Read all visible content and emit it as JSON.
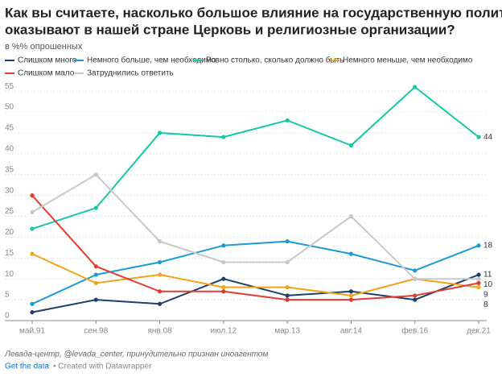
{
  "chart_data": {
    "type": "line",
    "title_lines": [
      "Как вы считаете, насколько большое влияние на государственную политику",
      "оказывают в нашей стране Церковь и религиозные организации?"
    ],
    "subtitle": "в %% опрошенных",
    "categories": [
      "май.91",
      "сен.98",
      "янв.08",
      "июл.12",
      "мар.13",
      "авг.14",
      "фев.16",
      "дек.21"
    ],
    "series": [
      {
        "name": "Слишком много",
        "color": "#1d3f6e",
        "values": [
          2,
          5,
          4,
          10,
          6,
          7,
          5,
          11
        ]
      },
      {
        "name": "Немного больше, чем необходимо",
        "color": "#1a9bd7",
        "values": [
          4,
          11,
          14,
          18,
          19,
          16,
          12,
          18
        ]
      },
      {
        "name": "Ровно столько, сколько должно быть",
        "color": "#15c8a6",
        "values": [
          22,
          27,
          45,
          44,
          48,
          42,
          56,
          44
        ]
      },
      {
        "name": "Немного меньше, чем необходимо",
        "color": "#f5a11c",
        "values": [
          16,
          9,
          11,
          8,
          8,
          6,
          10,
          8
        ]
      },
      {
        "name": "Слишком мало",
        "color": "#e03c31",
        "values": [
          30,
          13,
          7,
          7,
          5,
          5,
          6,
          9
        ]
      },
      {
        "name": "Затруднились ответить",
        "color": "#c8c8c8",
        "values": [
          26,
          35,
          19,
          14,
          14,
          25,
          10,
          10
        ]
      }
    ],
    "ylim": [
      0,
      56
    ],
    "yticks": [
      0,
      5,
      10,
      15,
      20,
      25,
      30,
      35,
      40,
      45,
      50,
      55
    ],
    "grid": true,
    "source": "Левада-центр, @levada_center, принудительно признан иноагентом",
    "link": "Get the data",
    "credit": "• Created with Datawrapper"
  }
}
